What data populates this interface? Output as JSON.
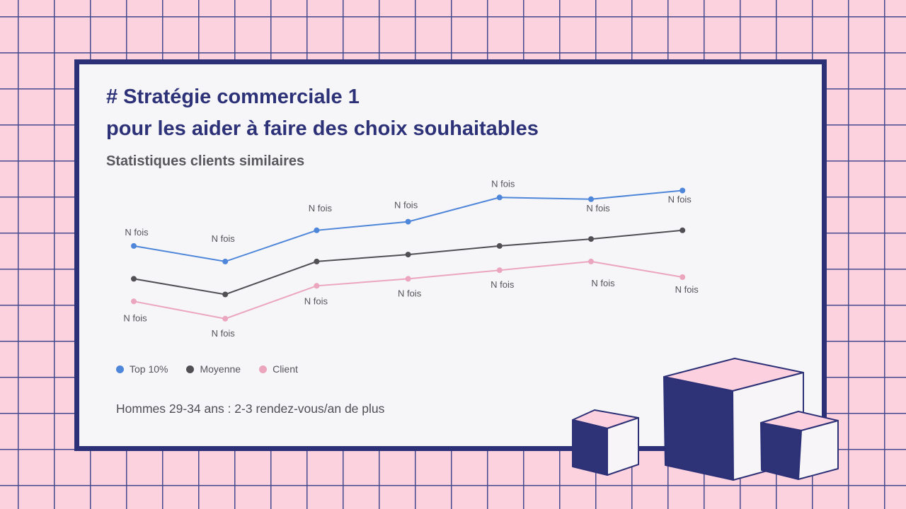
{
  "slide": {
    "title_line1": "# Stratégie commerciale 1",
    "title_line2": "pour les aider à faire des choix souhaitables",
    "subtitle": "Statistiques clients similaires",
    "note": "Hommes 29-34 ans : 2-3 rendez-vous/an de plus"
  },
  "colors": {
    "background_pink": "#fcd2df",
    "grid_line": "#454a8e",
    "card_background": "#f6f5f7",
    "card_border": "#2c3076",
    "title_navy": "#2d3278",
    "subtitle_grey": "#58585c",
    "label_grey": "#55555a",
    "series_top10_blue": "#4e86d9",
    "series_moyenne_grey": "#514f54",
    "series_client_pink": "#eba6bd"
  },
  "chart_data": {
    "type": "line",
    "x": [
      1,
      2,
      3,
      4,
      5,
      6,
      7
    ],
    "xlabel": "",
    "ylabel": "",
    "ylim": [
      0,
      100
    ],
    "grid": false,
    "legend_position": "bottom-left",
    "point_label": "N fois",
    "series": [
      {
        "name": "Top 10%",
        "id": "top10",
        "color": "#4e86d9",
        "values": [
          58,
          49,
          67,
          72,
          86,
          85,
          90
        ],
        "point_labels": [
          "N fois",
          "N fois",
          "N fois",
          "N fois",
          "N fois",
          "N fois",
          "N fois"
        ],
        "label_offsets": [
          [
            4,
            -15
          ],
          [
            -3,
            -28
          ],
          [
            5,
            -27
          ],
          [
            -3,
            -19
          ],
          [
            5,
            -15
          ],
          [
            10,
            17
          ],
          [
            -4,
            17
          ]
        ]
      },
      {
        "name": "Moyenne",
        "id": "moyenne",
        "color": "#514f54",
        "values": [
          39,
          30,
          49,
          53,
          58,
          62,
          67
        ],
        "point_labels": null,
        "label_offsets": null
      },
      {
        "name": "Client",
        "id": "client",
        "color": "#eba6bd",
        "values": [
          26,
          16,
          35,
          39,
          44,
          49,
          40
        ],
        "point_labels": [
          "N fois",
          "N fois",
          "N fois",
          "N fois",
          "N fois",
          "N fois",
          "N fois"
        ],
        "label_offsets": [
          [
            2,
            28
          ],
          [
            -3,
            25
          ],
          [
            -1,
            26
          ],
          [
            2,
            25
          ],
          [
            4,
            25
          ],
          [
            17,
            35
          ],
          [
            6,
            22
          ]
        ]
      }
    ]
  },
  "legend": {
    "items": [
      {
        "label": "Top 10%",
        "color": "#4e86d9"
      },
      {
        "label": "Moyenne",
        "color": "#514f54"
      },
      {
        "label": "Client",
        "color": "#eba6bd"
      }
    ]
  }
}
